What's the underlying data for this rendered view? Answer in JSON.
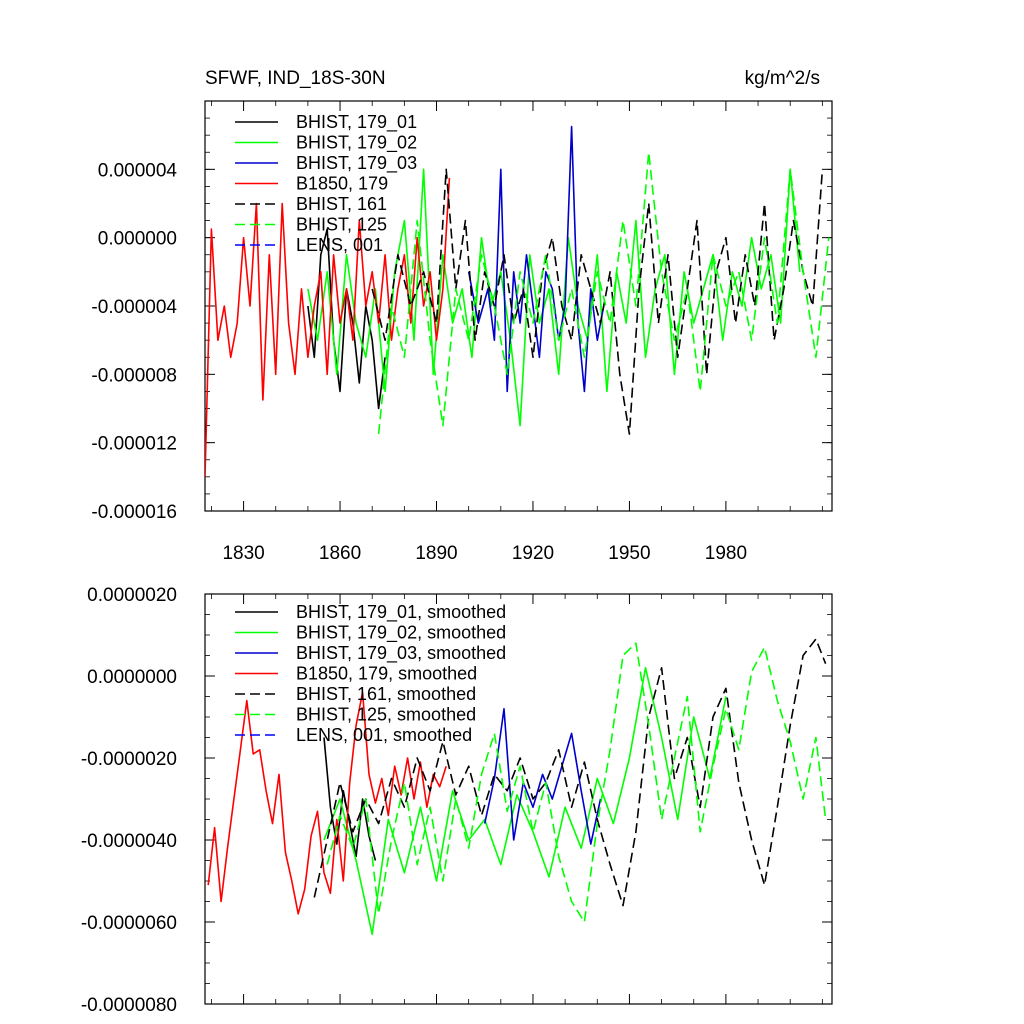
{
  "chart_data": [
    {
      "type": "line",
      "title": "SFWF, IND_18S-30N",
      "units": "kg/m^2/s",
      "xlabel": "",
      "ylabel": "",
      "xlim": [
        1818,
        2013
      ],
      "ylim": [
        -1.6e-05,
        8e-06
      ],
      "x_ticks": [
        1830,
        1860,
        1890,
        1920,
        1950,
        1980
      ],
      "y_ticks": [
        -1.6e-05,
        -1.2e-05,
        -8e-06,
        -4e-06,
        0.0,
        4e-06
      ],
      "y_tick_labels": [
        "-0.000016",
        "-0.000012",
        "-0.000008",
        "-0.000004",
        "0.000000",
        "0.000004"
      ],
      "legend_position": "top-left",
      "series": [
        {
          "name": "BHIST, 179_01",
          "color": "#000000",
          "dash": "solid",
          "x": [
            1850,
            1852,
            1854,
            1856,
            1858,
            1860,
            1862,
            1864,
            1866,
            1868,
            1870,
            1872,
            1874
          ],
          "values": [
            -4e-06,
            -7e-06,
            -1e-06,
            5e-07,
            -6e-06,
            -9e-06,
            -3e-06,
            -5e-06,
            -8.5e-06,
            -4e-06,
            -6e-06,
            -1e-05,
            -7e-06
          ]
        },
        {
          "name": "BHIST, 179_02",
          "color": "#00ff00",
          "dash": "solid",
          "x": [
            1850,
            1853,
            1856,
            1859,
            1862,
            1865,
            1868,
            1871,
            1874,
            1877,
            1880,
            1883,
            1886,
            1889,
            1892,
            1895,
            1898,
            1901,
            1904,
            1907,
            1910,
            1913,
            1916,
            1919,
            1922,
            1925,
            1928,
            1931,
            1934,
            1937,
            1940,
            1943,
            1946,
            1949,
            1952,
            1955,
            1958,
            1961,
            1964,
            1967,
            1970,
            1973,
            1976,
            1979,
            1982,
            1985,
            1988,
            1991,
            1994,
            1997,
            2000,
            2003
          ],
          "values": [
            -3e-06,
            -6e-06,
            -2e-06,
            -8e-06,
            -1e-06,
            -5e-06,
            -7e-06,
            -3e-06,
            -9e-06,
            -2e-06,
            1e-06,
            -6e-06,
            4e-06,
            -8e-06,
            -1e-06,
            -5e-06,
            -3e-06,
            -7e-06,
            0,
            -4e-06,
            -2e-06,
            -6e-06,
            -1.1e-05,
            -1e-06,
            -5e-06,
            -3e-06,
            -8e-06,
            0,
            -4e-06,
            -6e-06,
            -1e-06,
            -9e-06,
            -2e-06,
            -5e-06,
            1e-06,
            -7e-06,
            -3e-06,
            -1e-06,
            -8e-06,
            -2e-06,
            -5e-06,
            -3e-06,
            -1e-06,
            -6e-06,
            -2e-06,
            -4e-06,
            0,
            -3e-06,
            -1e-06,
            -5e-06,
            4e-06,
            -2e-06
          ]
        },
        {
          "name": "BHIST, 179_03",
          "color": "#0000cd",
          "dash": "solid",
          "x": [
            1900,
            1903,
            1906,
            1908,
            1910,
            1912,
            1914,
            1916,
            1918,
            1920,
            1922,
            1924,
            1926,
            1928,
            1930,
            1932,
            1934,
            1936,
            1938,
            1940,
            1942
          ],
          "values": [
            -2e-06,
            -5e-06,
            -3e-06,
            -6e-06,
            4e-06,
            -9e-06,
            -2e-06,
            -5e-06,
            -1e-06,
            -4e-06,
            -7e-06,
            -2e-06,
            -3e-06,
            -6e-06,
            -4e-06,
            6.5e-06,
            -5e-06,
            -9e-06,
            -3e-06,
            -6e-06,
            -4e-06
          ]
        },
        {
          "name": "B1850, 179",
          "color": "#ff0000",
          "dash": "solid",
          "x": [
            1818,
            1820,
            1822,
            1824,
            1826,
            1828,
            1830,
            1832,
            1834,
            1836,
            1838,
            1840,
            1842,
            1844,
            1846,
            1848,
            1850,
            1852,
            1854,
            1856,
            1858,
            1860,
            1862,
            1864,
            1866,
            1868,
            1870,
            1872,
            1874,
            1876,
            1878,
            1880,
            1882,
            1884,
            1886,
            1888,
            1890,
            1892,
            1894
          ],
          "values": [
            -1.4e-05,
            5e-07,
            -6e-06,
            -4e-06,
            -7e-06,
            -5e-06,
            0,
            -4e-06,
            2e-06,
            -9.5e-06,
            -1e-06,
            -8e-06,
            2e-06,
            -5e-06,
            -8e-06,
            -3e-06,
            -7e-06,
            -4e-06,
            -2e-06,
            -8e-06,
            -1e-06,
            -5e-06,
            -3e-06,
            -6e-06,
            1e-06,
            -4e-06,
            -2e-06,
            -5e-06,
            -1e-06,
            -6e-06,
            -3e-06,
            -1e-06,
            -5e-06,
            0,
            -4e-06,
            -2e-06,
            -6e-06,
            -3e-06,
            3.5e-06
          ]
        },
        {
          "name": "BHIST, 161",
          "color": "#000000",
          "dash": "dashed",
          "x": [
            1870,
            1874,
            1878,
            1882,
            1886,
            1890,
            1893,
            1896,
            1899,
            1902,
            1905,
            1908,
            1911,
            1914,
            1917,
            1920,
            1923,
            1926,
            1929,
            1932,
            1935,
            1938,
            1941,
            1944,
            1947,
            1950,
            1953,
            1956,
            1959,
            1962,
            1965,
            1968,
            1971,
            1974,
            1977,
            1980,
            1983,
            1986,
            1989,
            1992,
            1995,
            1998,
            2001,
            2004,
            2007,
            2010
          ],
          "values": [
            -3e-06,
            -6e-06,
            -1e-06,
            -4e-06,
            -2e-06,
            -5e-06,
            4e-06,
            -3e-06,
            1e-06,
            -6e-06,
            -2e-06,
            -4e-06,
            -1e-06,
            -5e-06,
            -3e-06,
            -7e-06,
            -2e-06,
            0,
            -4e-06,
            -6e-06,
            -1e-06,
            -3e-06,
            -5e-06,
            -2e-06,
            -8e-06,
            -1.15e-05,
            -3e-06,
            2e-06,
            -5e-06,
            -1e-06,
            -7e-06,
            -3e-06,
            1e-06,
            -8e-06,
            -2e-06,
            0,
            -5e-06,
            -1e-06,
            -4e-06,
            2e-06,
            -6e-06,
            -3e-06,
            1e-06,
            -2e-06,
            -4e-06,
            4e-06
          ]
        },
        {
          "name": "BHIST, 125",
          "color": "#00ff00",
          "dash": "dashed",
          "x": [
            1872,
            1876,
            1880,
            1884,
            1888,
            1892,
            1896,
            1900,
            1904,
            1908,
            1912,
            1916,
            1920,
            1924,
            1928,
            1932,
            1936,
            1940,
            1944,
            1948,
            1952,
            1956,
            1960,
            1964,
            1968,
            1972,
            1976,
            1980,
            1984,
            1988,
            1992,
            1996,
            2000,
            2004,
            2008,
            2012
          ],
          "values": [
            -1.15e-05,
            -4e-06,
            -7e-06,
            1e-06,
            -6e-06,
            -1.1e-05,
            -3e-06,
            -6e-06,
            -1e-06,
            -4e-06,
            -8e-06,
            -2e-06,
            -5e-06,
            -1e-06,
            -6e-06,
            -3e-06,
            -7e-06,
            -2e-06,
            -5e-06,
            1e-06,
            -4e-06,
            5e-06,
            -2e-06,
            -6e-06,
            -3e-06,
            -9e-06,
            -1e-06,
            -4e-06,
            -2e-06,
            -6e-06,
            0,
            -5e-06,
            4e-06,
            -2e-06,
            -7e-06,
            0
          ]
        },
        {
          "name": "LENS, 001",
          "color": "#0000ff",
          "dash": "dashed",
          "x": [],
          "values": []
        }
      ]
    },
    {
      "type": "line",
      "title": "",
      "xlabel": "",
      "ylabel": "",
      "xlim": [
        1818,
        2013
      ],
      "ylim": [
        -8e-06,
        2e-06
      ],
      "x_ticks": [
        1830,
        1860,
        1890,
        1920,
        1950,
        1980
      ],
      "y_ticks": [
        -8e-06,
        -6e-06,
        -4e-06,
        -2e-06,
        0.0,
        2e-06
      ],
      "y_tick_labels": [
        "-0.0000080",
        "-0.0000060",
        "-0.0000040",
        "-0.0000020",
        "0.0000000",
        "0.0000020"
      ],
      "legend_position": "top-left",
      "series": [
        {
          "name": "BHIST, 179_01, smoothed",
          "color": "#000000",
          "dash": "solid",
          "x": [
            1855,
            1857,
            1859,
            1861,
            1863,
            1865,
            1867,
            1869,
            1871
          ],
          "values": [
            -1.5e-06,
            -3.2e-06,
            -4.1e-06,
            -2.8e-06,
            -3.6e-06,
            -4.4e-06,
            -3e-06,
            -3.9e-06,
            -4.5e-06
          ]
        },
        {
          "name": "BHIST, 179_02, smoothed",
          "color": "#00ff00",
          "dash": "solid",
          "x": [
            1855,
            1860,
            1865,
            1870,
            1875,
            1880,
            1885,
            1890,
            1895,
            1900,
            1905,
            1910,
            1915,
            1920,
            1925,
            1930,
            1935,
            1940,
            1945,
            1950,
            1955,
            1960,
            1965,
            1970,
            1975,
            1980
          ],
          "values": [
            -4e-06,
            -3e-06,
            -4.5e-06,
            -6.3e-06,
            -3.5e-06,
            -4.8e-06,
            -3.2e-06,
            -5e-06,
            -2.8e-06,
            -4e-06,
            -3.5e-06,
            -4.6e-06,
            -2.9e-06,
            -3.8e-06,
            -4.9e-06,
            -3.2e-06,
            -4.2e-06,
            -2.5e-06,
            -3.6e-06,
            -2e-06,
            2e-07,
            -1.5e-06,
            -3.5e-06,
            -1e-06,
            -2.5e-06,
            -5e-07
          ]
        },
        {
          "name": "BHIST, 179_03, smoothed",
          "color": "#0000cd",
          "dash": "solid",
          "x": [
            1905,
            1908,
            1911,
            1914,
            1917,
            1920,
            1923,
            1926,
            1929,
            1932,
            1935,
            1938,
            1941
          ],
          "values": [
            -3.6e-06,
            -2.5e-06,
            -8e-07,
            -4e-06,
            -2.6e-06,
            -3.2e-06,
            -2.4e-06,
            -3e-06,
            -2.2e-06,
            -1.4e-06,
            -2.8e-06,
            -4.1e-06,
            -3e-06
          ]
        },
        {
          "name": "B1850, 179, smoothed",
          "color": "#ff0000",
          "dash": "solid",
          "x": [
            1819,
            1821,
            1823,
            1825,
            1827,
            1829,
            1831,
            1833,
            1835,
            1837,
            1839,
            1841,
            1843,
            1845,
            1847,
            1849,
            1851,
            1853,
            1855,
            1857,
            1859,
            1861,
            1863,
            1865,
            1867,
            1869,
            1871,
            1873,
            1875,
            1877,
            1879,
            1881,
            1883,
            1885,
            1887,
            1889,
            1891,
            1893
          ],
          "values": [
            -5.1e-06,
            -3.7e-06,
            -5.5e-06,
            -4.2e-06,
            -3e-06,
            -1.8e-06,
            -6e-07,
            -1.9e-06,
            -1.8e-06,
            -2.8e-06,
            -3.6e-06,
            -2.4e-06,
            -4.3e-06,
            -5e-06,
            -5.8e-06,
            -5.2e-06,
            -3.9e-06,
            -3.3e-06,
            -4.8e-06,
            -5.3e-06,
            -3.5e-06,
            -5e-06,
            -2.6e-06,
            -1.2e-06,
            -4e-07,
            -2.4e-06,
            -3.1e-06,
            -2.5e-06,
            -3.4e-06,
            -2.2e-06,
            -2.9e-06,
            -2e-06,
            -3e-06,
            -2.1e-06,
            -3.2e-06,
            -2.4e-06,
            -2.7e-06,
            -2.2e-06
          ]
        },
        {
          "name": "BHIST, 161, smoothed",
          "color": "#000000",
          "dash": "dashed",
          "x": [
            1852,
            1856,
            1860,
            1864,
            1868,
            1872,
            1876,
            1880,
            1884,
            1888,
            1892,
            1896,
            1900,
            1904,
            1908,
            1912,
            1916,
            1920,
            1924,
            1928,
            1932,
            1936,
            1940,
            1944,
            1948,
            1952,
            1956,
            1960,
            1964,
            1968,
            1972,
            1976,
            1980,
            1984,
            1988,
            1992,
            1996,
            2000,
            2004,
            2008,
            2011
          ],
          "values": [
            -5.4e-06,
            -4e-06,
            -2.6e-06,
            -3.8e-06,
            -3e-06,
            -3.6e-06,
            -2.5e-06,
            -3.2e-06,
            -2e-06,
            -2.8e-06,
            -1.6e-06,
            -2.9e-06,
            -2.2e-06,
            -3.4e-06,
            -2.4e-06,
            -2.8e-06,
            -2e-06,
            -3e-06,
            -2.6e-06,
            -1.8e-06,
            -3.2e-06,
            -2.1e-06,
            -3.5e-06,
            -4.6e-06,
            -5.6e-06,
            -3.8e-06,
            -1e-06,
            2e-07,
            -2.5e-06,
            -1.5e-06,
            -3.2e-06,
            -1e-06,
            -3e-07,
            -2.6e-06,
            -4e-06,
            -5.1e-06,
            -3.2e-06,
            -1.2e-06,
            5e-07,
            9e-07,
            3e-07
          ]
        },
        {
          "name": "BHIST, 125, smoothed",
          "color": "#00ff00",
          "dash": "dashed",
          "x": [
            1856,
            1860,
            1864,
            1868,
            1872,
            1876,
            1880,
            1884,
            1888,
            1892,
            1896,
            1900,
            1904,
            1908,
            1912,
            1916,
            1920,
            1924,
            1928,
            1932,
            1936,
            1940,
            1944,
            1948,
            1952,
            1956,
            1960,
            1964,
            1968,
            1972,
            1976,
            1980,
            1984,
            1988,
            1992,
            1996,
            2000,
            2004,
            2008,
            2011
          ],
          "values": [
            -4.6e-06,
            -3.4e-06,
            -4.2e-06,
            -3e-06,
            -5.8e-06,
            -4e-06,
            -2.6e-06,
            -4.6e-06,
            -3.2e-06,
            -5e-06,
            -3e-06,
            -4.2e-06,
            -2.4e-06,
            -1.4e-06,
            -3.3e-06,
            -2.2e-06,
            -3.8e-06,
            -2.6e-06,
            -4.4e-06,
            -5.5e-06,
            -6e-06,
            -3.6e-06,
            -1.8e-06,
            5e-07,
            8e-07,
            -1.2e-06,
            -3.5e-06,
            -2e-06,
            -5e-07,
            -3.8e-06,
            -2.2e-06,
            -8e-07,
            -1.8e-06,
            1e-07,
            7e-07,
            -6e-07,
            -1.6e-06,
            -3e-06,
            -1.5e-06,
            -3.5e-06
          ]
        },
        {
          "name": "LENS, 001, smoothed",
          "color": "#0000ff",
          "dash": "dashed",
          "x": [],
          "values": []
        }
      ]
    }
  ]
}
